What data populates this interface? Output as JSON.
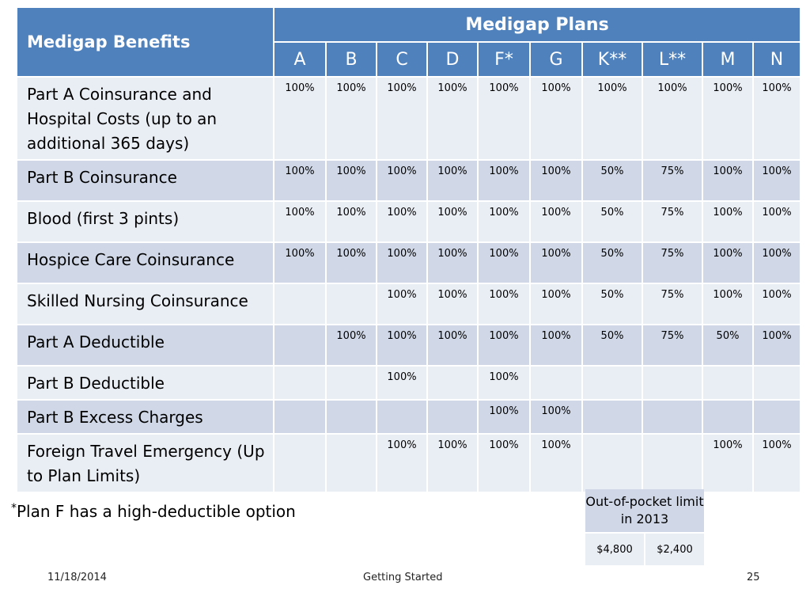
{
  "table": {
    "benefits_header": "Medigap Benefits",
    "plans_header": "Medigap Plans",
    "plans": [
      "A",
      "B",
      "C",
      "D",
      "F*",
      "G",
      "K**",
      "L**",
      "M",
      "N"
    ],
    "rows": [
      {
        "benefit": "Part A Coinsurance and Hospital Costs (up to an additional 365 days)",
        "values": [
          "100%",
          "100%",
          "100%",
          "100%",
          "100%",
          "100%",
          "100%",
          "100%",
          "100%",
          "100%"
        ]
      },
      {
        "benefit": "Part B Coinsurance",
        "values": [
          "100%",
          "100%",
          "100%",
          "100%",
          "100%",
          "100%",
          "50%",
          "75%",
          "100%",
          "100%"
        ]
      },
      {
        "benefit": "Blood (first 3 pints)",
        "values": [
          "100%",
          "100%",
          "100%",
          "100%",
          "100%",
          "100%",
          "50%",
          "75%",
          "100%",
          "100%"
        ]
      },
      {
        "benefit": "Hospice Care Coinsurance",
        "values": [
          "100%",
          "100%",
          "100%",
          "100%",
          "100%",
          "100%",
          "50%",
          "75%",
          "100%",
          "100%"
        ]
      },
      {
        "benefit": "Skilled Nursing Coinsurance",
        "values": [
          "",
          "",
          "100%",
          "100%",
          "100%",
          "100%",
          "50%",
          "75%",
          "100%",
          "100%"
        ]
      },
      {
        "benefit": "Part A Deductible",
        "values": [
          "",
          "100%",
          "100%",
          "100%",
          "100%",
          "100%",
          "50%",
          "75%",
          "50%",
          "100%"
        ]
      },
      {
        "benefit": "Part B Deductible",
        "values": [
          "",
          "",
          "100%",
          "",
          "100%",
          "",
          "",
          "",
          "",
          ""
        ]
      },
      {
        "benefit": "Part B Excess Charges",
        "values": [
          "",
          "",
          "",
          "",
          "100%",
          "100%",
          "",
          "",
          "",
          ""
        ]
      },
      {
        "benefit": "Foreign Travel Emergency (Up to Plan Limits)",
        "values": [
          "",
          "",
          "100%",
          "100%",
          "100%",
          "100%",
          "",
          "",
          "100%",
          "100%"
        ]
      }
    ]
  },
  "out_of_pocket": {
    "header": "Out-of-pocket limit in 2013",
    "values": [
      "$4,800",
      "$2,400"
    ]
  },
  "note": {
    "star": "*",
    "text": "Plan F has a high-deductible option"
  },
  "footer": {
    "date": "11/18/2014",
    "title": "Getting Started",
    "page": "25"
  },
  "colors": {
    "header_blue": "#4f81bd",
    "row_light": "#e9edf4",
    "row_dark": "#d0d8e8"
  }
}
